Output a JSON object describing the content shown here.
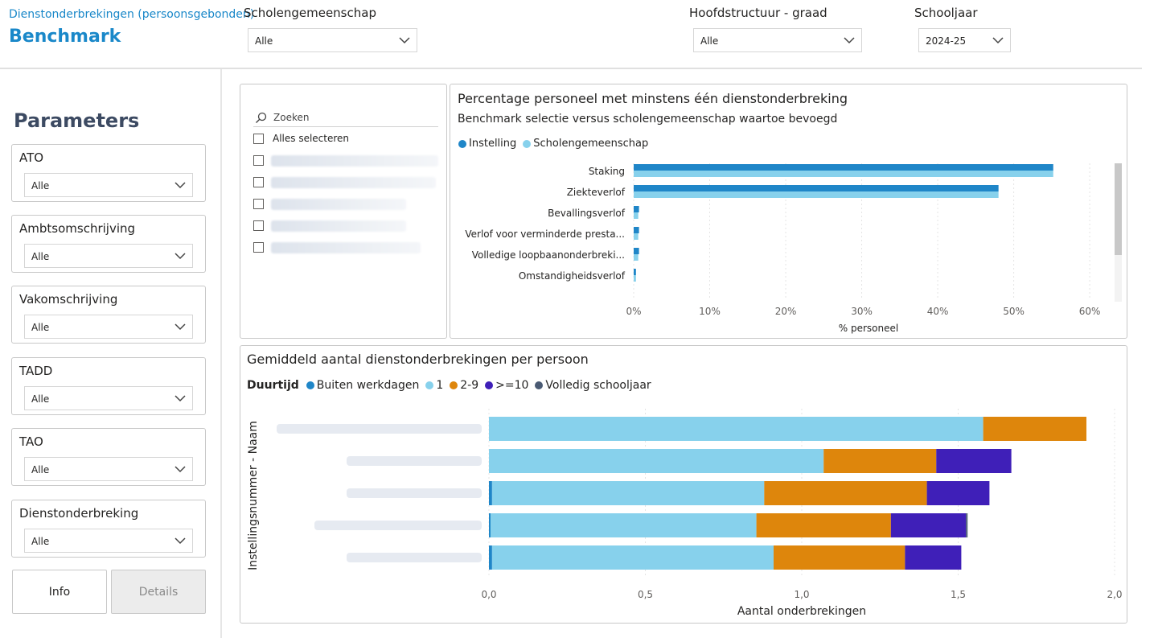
{
  "header": {
    "subtitle": "Dienstonderbrekingen (persoonsgebonden)",
    "title": "Benchmark",
    "filters": [
      {
        "label": "Scholengemeenschap",
        "value": "Alle"
      },
      {
        "label": "Hoofdstructuur - graad",
        "value": "Alle"
      },
      {
        "label": "Schooljaar",
        "value": "2024-25"
      }
    ]
  },
  "parameters": {
    "title": "Parameters",
    "cards": [
      {
        "label": "ATO",
        "value": "Alle"
      },
      {
        "label": "Ambtsomschrijving",
        "value": "Alle"
      },
      {
        "label": "Vakomschrijving",
        "value": "Alle"
      },
      {
        "label": "TADD",
        "value": "Alle"
      },
      {
        "label": "TAO",
        "value": "Alle"
      },
      {
        "label": "Dienstonderbreking",
        "value": "Alle"
      }
    ],
    "buttons": {
      "info": "Info",
      "details": "Details"
    }
  },
  "slicer": {
    "search_placeholder": "Zoeken",
    "select_all": "Alles selecteren",
    "item_count": 5
  },
  "colors": {
    "instelling": "#1f86c8",
    "scholengemeenschap": "#87d1ec",
    "buiten_werkdagen": "#1f86c8",
    "d1": "#87d1ec",
    "d2_9": "#de860c",
    "d10plus": "#3f1fb8",
    "volledig": "#4a5a73",
    "title_blue": "#1a88c9"
  },
  "chart_data": [
    {
      "type": "bar",
      "orientation": "horizontal",
      "title": "Percentage personeel met minstens één dienstonderbreking",
      "subtitle": "Benchmark selectie versus scholengemeenschap waartoe bevoegd",
      "categories": [
        "Staking",
        "Ziekteverlof",
        "Bevallingsverlof",
        "Verlof voor verminderde presta...",
        "Volledige loopbaanonderbreki...",
        "Omstandigheidsverlof"
      ],
      "series": [
        {
          "name": "Instelling",
          "values": [
            55.2,
            48.0,
            0.7,
            0.7,
            0.7,
            0.3
          ]
        },
        {
          "name": "Scholengemeenschap",
          "values": [
            55.2,
            48.0,
            0.6,
            0.6,
            0.6,
            0.3
          ]
        }
      ],
      "xlabel": "% personeel",
      "xlim": [
        0,
        62
      ],
      "xticks": [
        "0%",
        "10%",
        "20%",
        "30%",
        "40%",
        "50%",
        "60%"
      ],
      "legend": "top-left",
      "grid": true
    },
    {
      "type": "bar",
      "orientation": "horizontal",
      "stacked": true,
      "title": "Gemiddeld aantal dienstonderbrekingen per persoon",
      "legend_title": "Duurtijd",
      "series": [
        {
          "name": "Buiten werkdagen",
          "values": [
            0.0,
            0.0,
            0.01,
            0.005,
            0.01
          ]
        },
        {
          "name": "1",
          "values": [
            1.58,
            1.07,
            0.87,
            0.85,
            0.9
          ]
        },
        {
          "name": "2-9",
          "values": [
            0.33,
            0.36,
            0.52,
            0.43,
            0.42
          ]
        },
        {
          "name": ">=10",
          "values": [
            0.0,
            0.24,
            0.2,
            0.24,
            0.18
          ]
        },
        {
          "name": "Volledig schooljaar",
          "values": [
            0.0,
            0.0,
            0.0,
            0.005,
            0.0
          ]
        }
      ],
      "ylabel": "Instellingsnummer - Naam",
      "xlabel": "Aantal onderbrekingen",
      "xlim": [
        0,
        2.0
      ],
      "xticks": [
        "0,0",
        "0,5",
        "1,0",
        "1,5",
        "2,0"
      ],
      "legend": "top-left",
      "grid": true
    }
  ]
}
